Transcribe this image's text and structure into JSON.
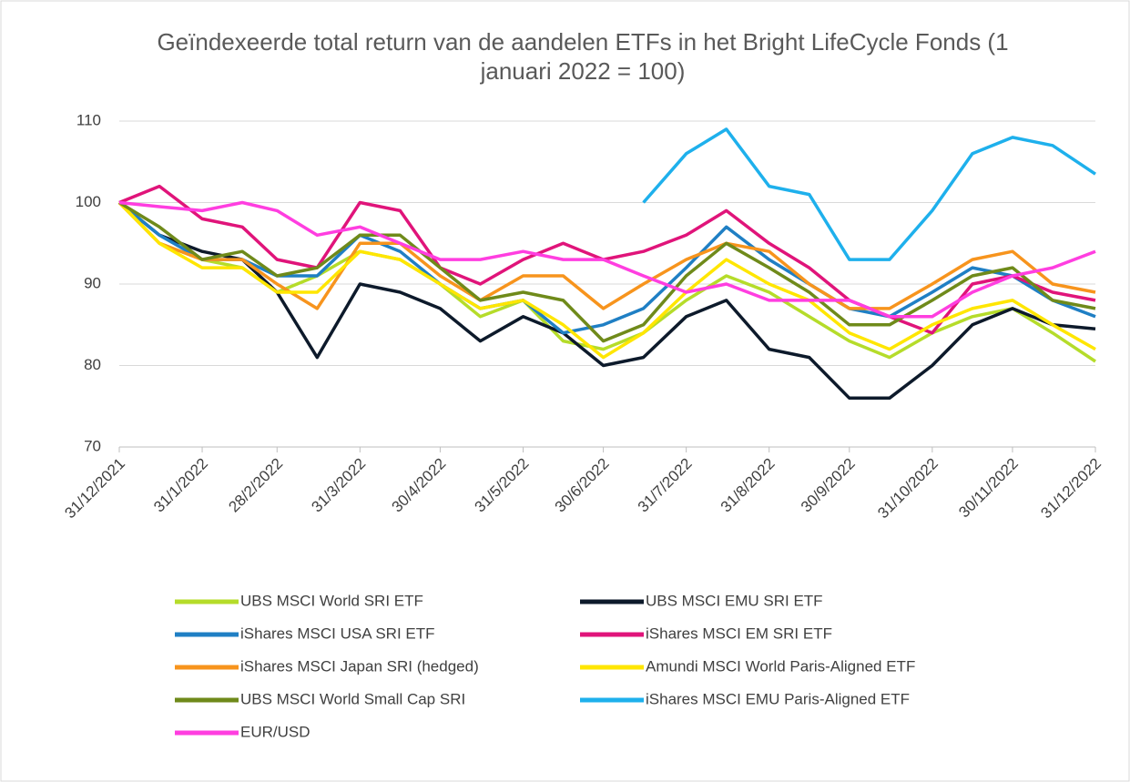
{
  "chart_data": {
    "type": "line",
    "title": "Geïndexeerde total return van de aandelen ETFs in het Bright LifeCycle Fonds (1 januari 2022 = 100)",
    "x": [
      "31/12/2021",
      "15/1/2022",
      "31/1/2022",
      "15/2/2022",
      "28/2/2022",
      "15/3/2022",
      "31/3/2022",
      "15/4/2022",
      "30/4/2022",
      "15/5/2022",
      "31/5/2022",
      "15/6/2022",
      "30/6/2022",
      "15/7/2022",
      "31/7/2022",
      "15/8/2022",
      "31/8/2022",
      "15/9/2022",
      "30/9/2022",
      "15/10/2022",
      "31/10/2022",
      "15/11/2022",
      "30/11/2022",
      "15/12/2022",
      "31/12/2022"
    ],
    "xlim": [
      "31/12/2021",
      "31/12/2022"
    ],
    "xticks": [
      "31/12/2021",
      "31/1/2022",
      "28/2/2022",
      "31/3/2022",
      "30/4/2022",
      "31/5/2022",
      "30/6/2022",
      "31/7/2022",
      "31/8/2022",
      "30/9/2022",
      "31/10/2022",
      "30/11/2022",
      "31/12/2022"
    ],
    "ylim": [
      70,
      110
    ],
    "yticks": [
      70,
      80,
      90,
      100,
      110
    ],
    "grid": true,
    "legend": "bottom",
    "series": [
      {
        "name": "UBS MSCI World SRI ETF",
        "color": "#b5dc2a",
        "values": [
          100,
          95,
          93,
          92,
          89,
          91,
          94,
          93,
          90,
          86,
          88,
          83,
          82,
          84,
          88,
          91,
          89,
          86,
          83,
          81,
          84,
          86,
          87,
          84,
          80.5
        ]
      },
      {
        "name": "UBS MSCI EMU SRI ETF",
        "color": "#0d1a2b",
        "values": [
          100,
          96,
          94,
          93,
          89,
          81,
          90,
          89,
          87,
          83,
          86,
          84,
          80,
          81,
          86,
          88,
          82,
          81,
          76,
          76,
          80,
          85,
          87,
          85,
          84.5
        ]
      },
      {
        "name": "iShares MSCI USA SRI ETF",
        "color": "#1f7fc4",
        "values": [
          100,
          96,
          93,
          93,
          91,
          91,
          96,
          94,
          90,
          87,
          88,
          84,
          85,
          87,
          92,
          97,
          93,
          90,
          87,
          86,
          89,
          92,
          91,
          88,
          86
        ]
      },
      {
        "name": "iShares MSCI EM SRI ETF",
        "color": "#e0147a",
        "values": [
          100,
          102,
          98,
          97,
          93,
          92,
          100,
          99,
          92,
          90,
          93,
          95,
          93,
          94,
          96,
          99,
          95,
          92,
          88,
          86,
          84,
          90,
          91,
          89,
          88
        ]
      },
      {
        "name": "iShares MSCI Japan SRI (hedged)",
        "color": "#f7941d",
        "values": [
          100,
          95,
          93,
          93,
          90,
          87,
          95,
          95,
          91,
          88,
          91,
          91,
          87,
          90,
          93,
          95,
          94,
          90,
          87,
          87,
          90,
          93,
          94,
          90,
          89
        ]
      },
      {
        "name": "Amundi MSCI World Paris-Aligned ETF",
        "color": "#ffe600",
        "values": [
          100,
          95,
          92,
          92,
          89,
          89,
          94,
          93,
          90,
          87,
          88,
          85,
          81,
          84,
          89,
          93,
          90,
          88,
          84,
          82,
          85,
          87,
          88,
          85,
          82
        ]
      },
      {
        "name": "UBS MSCI World Small Cap SRI",
        "color": "#6f8a1a",
        "values": [
          100,
          97,
          93,
          94,
          91,
          92,
          96,
          96,
          92,
          88,
          89,
          88,
          83,
          85,
          91,
          95,
          92,
          89,
          85,
          85,
          88,
          91,
          92,
          88,
          87
        ]
      },
      {
        "name": "iShares MSCI EMU Paris-Aligned ETF",
        "color": "#1eb0ec",
        "values": [
          null,
          null,
          null,
          null,
          null,
          null,
          null,
          null,
          null,
          null,
          null,
          null,
          null,
          100,
          106,
          109,
          102,
          101,
          93,
          93,
          99,
          106,
          108,
          107,
          103.5
        ]
      },
      {
        "name": "EUR/USD",
        "color": "#ff3ee0",
        "values": [
          100,
          99.5,
          99,
          100,
          99,
          96,
          97,
          95,
          93,
          93,
          94,
          93,
          93,
          91,
          89,
          90,
          88,
          88,
          88,
          86,
          86,
          89,
          91,
          92,
          94
        ]
      }
    ]
  }
}
